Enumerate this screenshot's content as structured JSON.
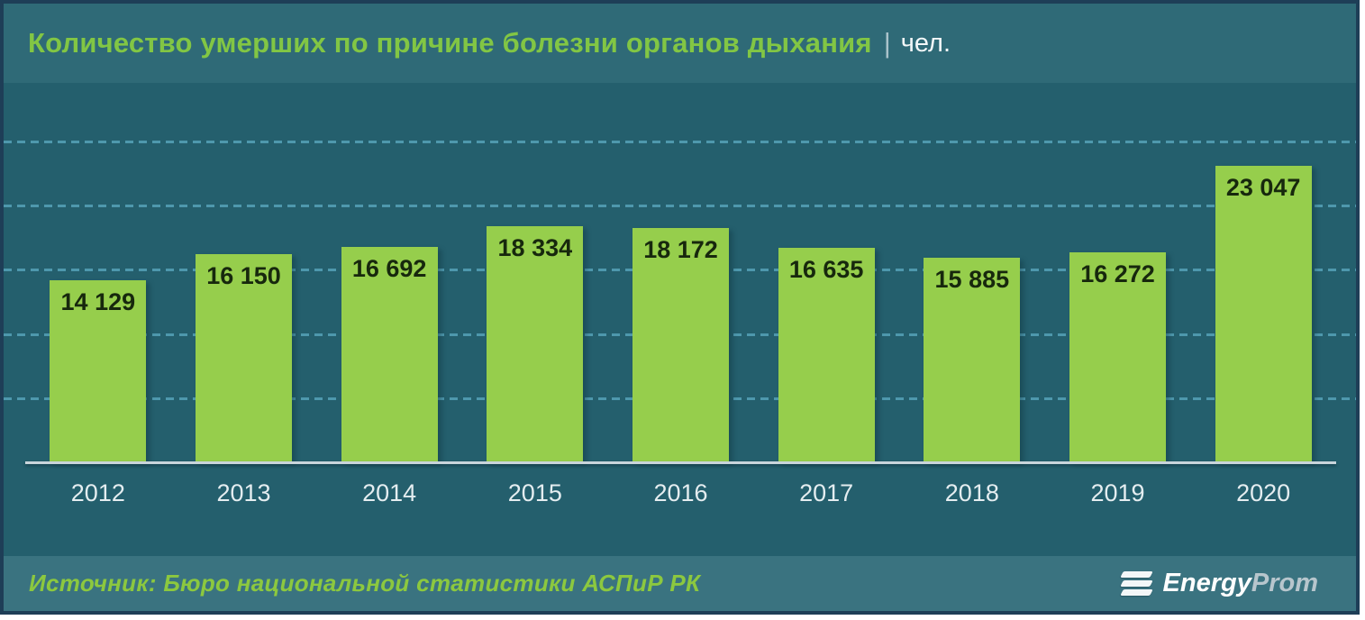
{
  "header": {
    "title": "Количество умерших по причине болезни органов дыхания",
    "separator": "|",
    "unit": "чел."
  },
  "chart_data": {
    "type": "bar",
    "title": "Количество умерших по причине болезни органов дыхания | чел.",
    "categories": [
      "2012",
      "2013",
      "2014",
      "2015",
      "2016",
      "2017",
      "2018",
      "2019",
      "2020"
    ],
    "values": [
      14129,
      16150,
      16692,
      18334,
      18172,
      16635,
      15885,
      16272,
      23047
    ],
    "value_labels": [
      "14 129",
      "16 150",
      "16 692",
      "18 334",
      "18 172",
      "16 635",
      "15 885",
      "16 272",
      "23 047"
    ],
    "xlabel": "",
    "ylabel": "",
    "ylim": [
      0,
      29500
    ],
    "gridlines": [
      5000,
      10000,
      15000,
      20000,
      25000
    ],
    "grid": "horizontal-dashed",
    "legend": "none",
    "bar_color": "#96ce4c",
    "label_color": "#17280d"
  },
  "footer": {
    "source": "Источник: Бюро национальной  статистики АСПиР РК",
    "logo": {
      "brand_primary": "Energy",
      "brand_secondary": "Prom"
    }
  },
  "colors": {
    "accent_green": "#82c644",
    "header_bg": "#2f6a77",
    "plot_bg": "#245f6d",
    "footer_bg": "#3a7380",
    "gridline": "#4e98ad",
    "axis_line": "#c9d5db",
    "year_label": "#e4edf0",
    "outer_border": "#1e3e57"
  }
}
